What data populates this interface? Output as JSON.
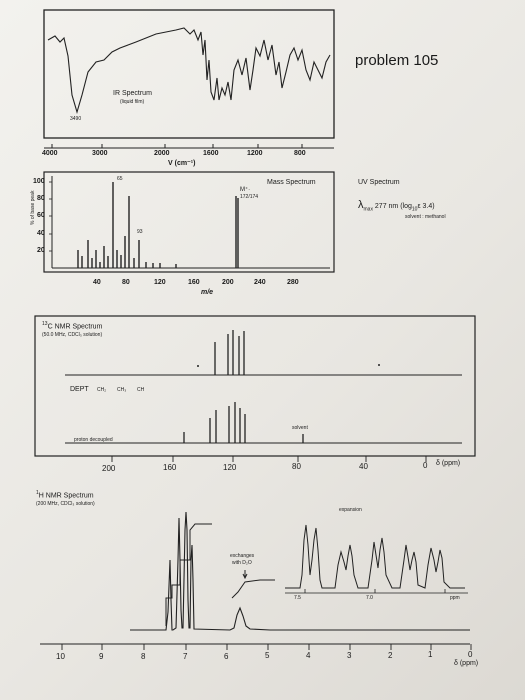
{
  "problem_title": "problem 105",
  "ir": {
    "title": "IR Spectrum",
    "subtitle": "(liquid film)",
    "peak_label": "3490",
    "ticks": [
      "4000",
      "3000",
      "2000",
      "1600",
      "1200",
      "800"
    ],
    "axis_label": "V (cm⁻¹)"
  },
  "mass": {
    "title": "Mass Spectrum",
    "ylabel": "% of base peak",
    "yticks": [
      "100",
      "80",
      "60",
      "40",
      "20"
    ],
    "xticks": [
      "40",
      "80",
      "120",
      "160",
      "200",
      "240",
      "280"
    ],
    "xlabel": "m/e",
    "peak_65": "65",
    "peak_93": "93",
    "molecular_ion": "M⁺·",
    "molecular_ion_mass": "172/174"
  },
  "uv": {
    "title": "UV Spectrum",
    "lambda": "λ",
    "lambda_sub": "max",
    "value": "277 nm (log",
    "log_sub": "10",
    "value_end": "ε 3.4)",
    "solvent": "solvent : methanol"
  },
  "c13": {
    "title_sup": "13",
    "title": "C NMR Spectrum",
    "conditions": "(50.0 MHz, CDCl₃ solution)",
    "dept_label": "DEPT",
    "dept_groups": [
      "CH₂",
      "CH₃",
      "CH"
    ],
    "solvent_label": "solvent",
    "proton_decoupled": "proton decoupled",
    "xticks": [
      "200",
      "160",
      "120",
      "80",
      "40",
      "0"
    ],
    "xunit": "δ (ppm)"
  },
  "h1": {
    "title_sup": "1",
    "title": "H NMR Spectrum",
    "conditions": "(200 MHz, CDCl₃ solution)",
    "expansion_label": "expansion",
    "exchanges_label": "exchanges",
    "exchanges_label2": "with D₂O",
    "expansion_ticks": [
      "7.5",
      "7.0",
      "ppm"
    ],
    "xticks": [
      "10",
      "9",
      "8",
      "7",
      "6",
      "5",
      "4",
      "3",
      "2",
      "1",
      "0"
    ],
    "xunit": "δ (ppm)"
  }
}
